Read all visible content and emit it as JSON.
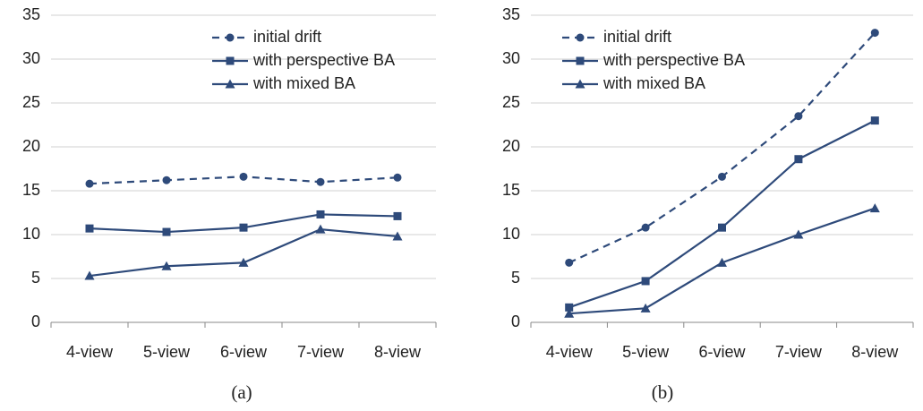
{
  "chart_data": [
    {
      "type": "line",
      "caption": "(a)",
      "categories": [
        "4-view",
        "5-view",
        "6-view",
        "7-view",
        "8-view"
      ],
      "ylim": [
        0,
        35
      ],
      "yticks": [
        0,
        5,
        10,
        15,
        20,
        25,
        30,
        35
      ],
      "grid": true,
      "series": [
        {
          "name": "initial drift",
          "color": "#2e4a7a",
          "marker": "circle",
          "dash": true,
          "values": [
            15.8,
            16.2,
            16.6,
            16.0,
            16.5
          ]
        },
        {
          "name": "with perspective BA",
          "color": "#2e4a7a",
          "marker": "square",
          "dash": false,
          "values": [
            10.7,
            10.3,
            10.8,
            12.3,
            12.1
          ]
        },
        {
          "name": "with mixed BA",
          "color": "#2e4a7a",
          "marker": "triangle",
          "dash": false,
          "values": [
            5.3,
            6.4,
            6.8,
            10.6,
            9.8
          ]
        }
      ]
    },
    {
      "type": "line",
      "caption": "(b)",
      "categories": [
        "4-view",
        "5-view",
        "6-view",
        "7-view",
        "8-view"
      ],
      "ylim": [
        0,
        35
      ],
      "yticks": [
        0,
        5,
        10,
        15,
        20,
        25,
        30,
        35
      ],
      "grid": true,
      "series": [
        {
          "name": "initial drift",
          "color": "#2e4a7a",
          "marker": "circle",
          "dash": true,
          "values": [
            6.8,
            10.8,
            16.6,
            23.5,
            33.0
          ]
        },
        {
          "name": "with perspective BA",
          "color": "#2e4a7a",
          "marker": "square",
          "dash": false,
          "values": [
            1.7,
            4.7,
            10.8,
            18.6,
            23.0
          ]
        },
        {
          "name": "with mixed BA",
          "color": "#2e4a7a",
          "marker": "triangle",
          "dash": false,
          "values": [
            1.0,
            1.6,
            6.8,
            10.0,
            13.0
          ]
        }
      ]
    }
  ]
}
